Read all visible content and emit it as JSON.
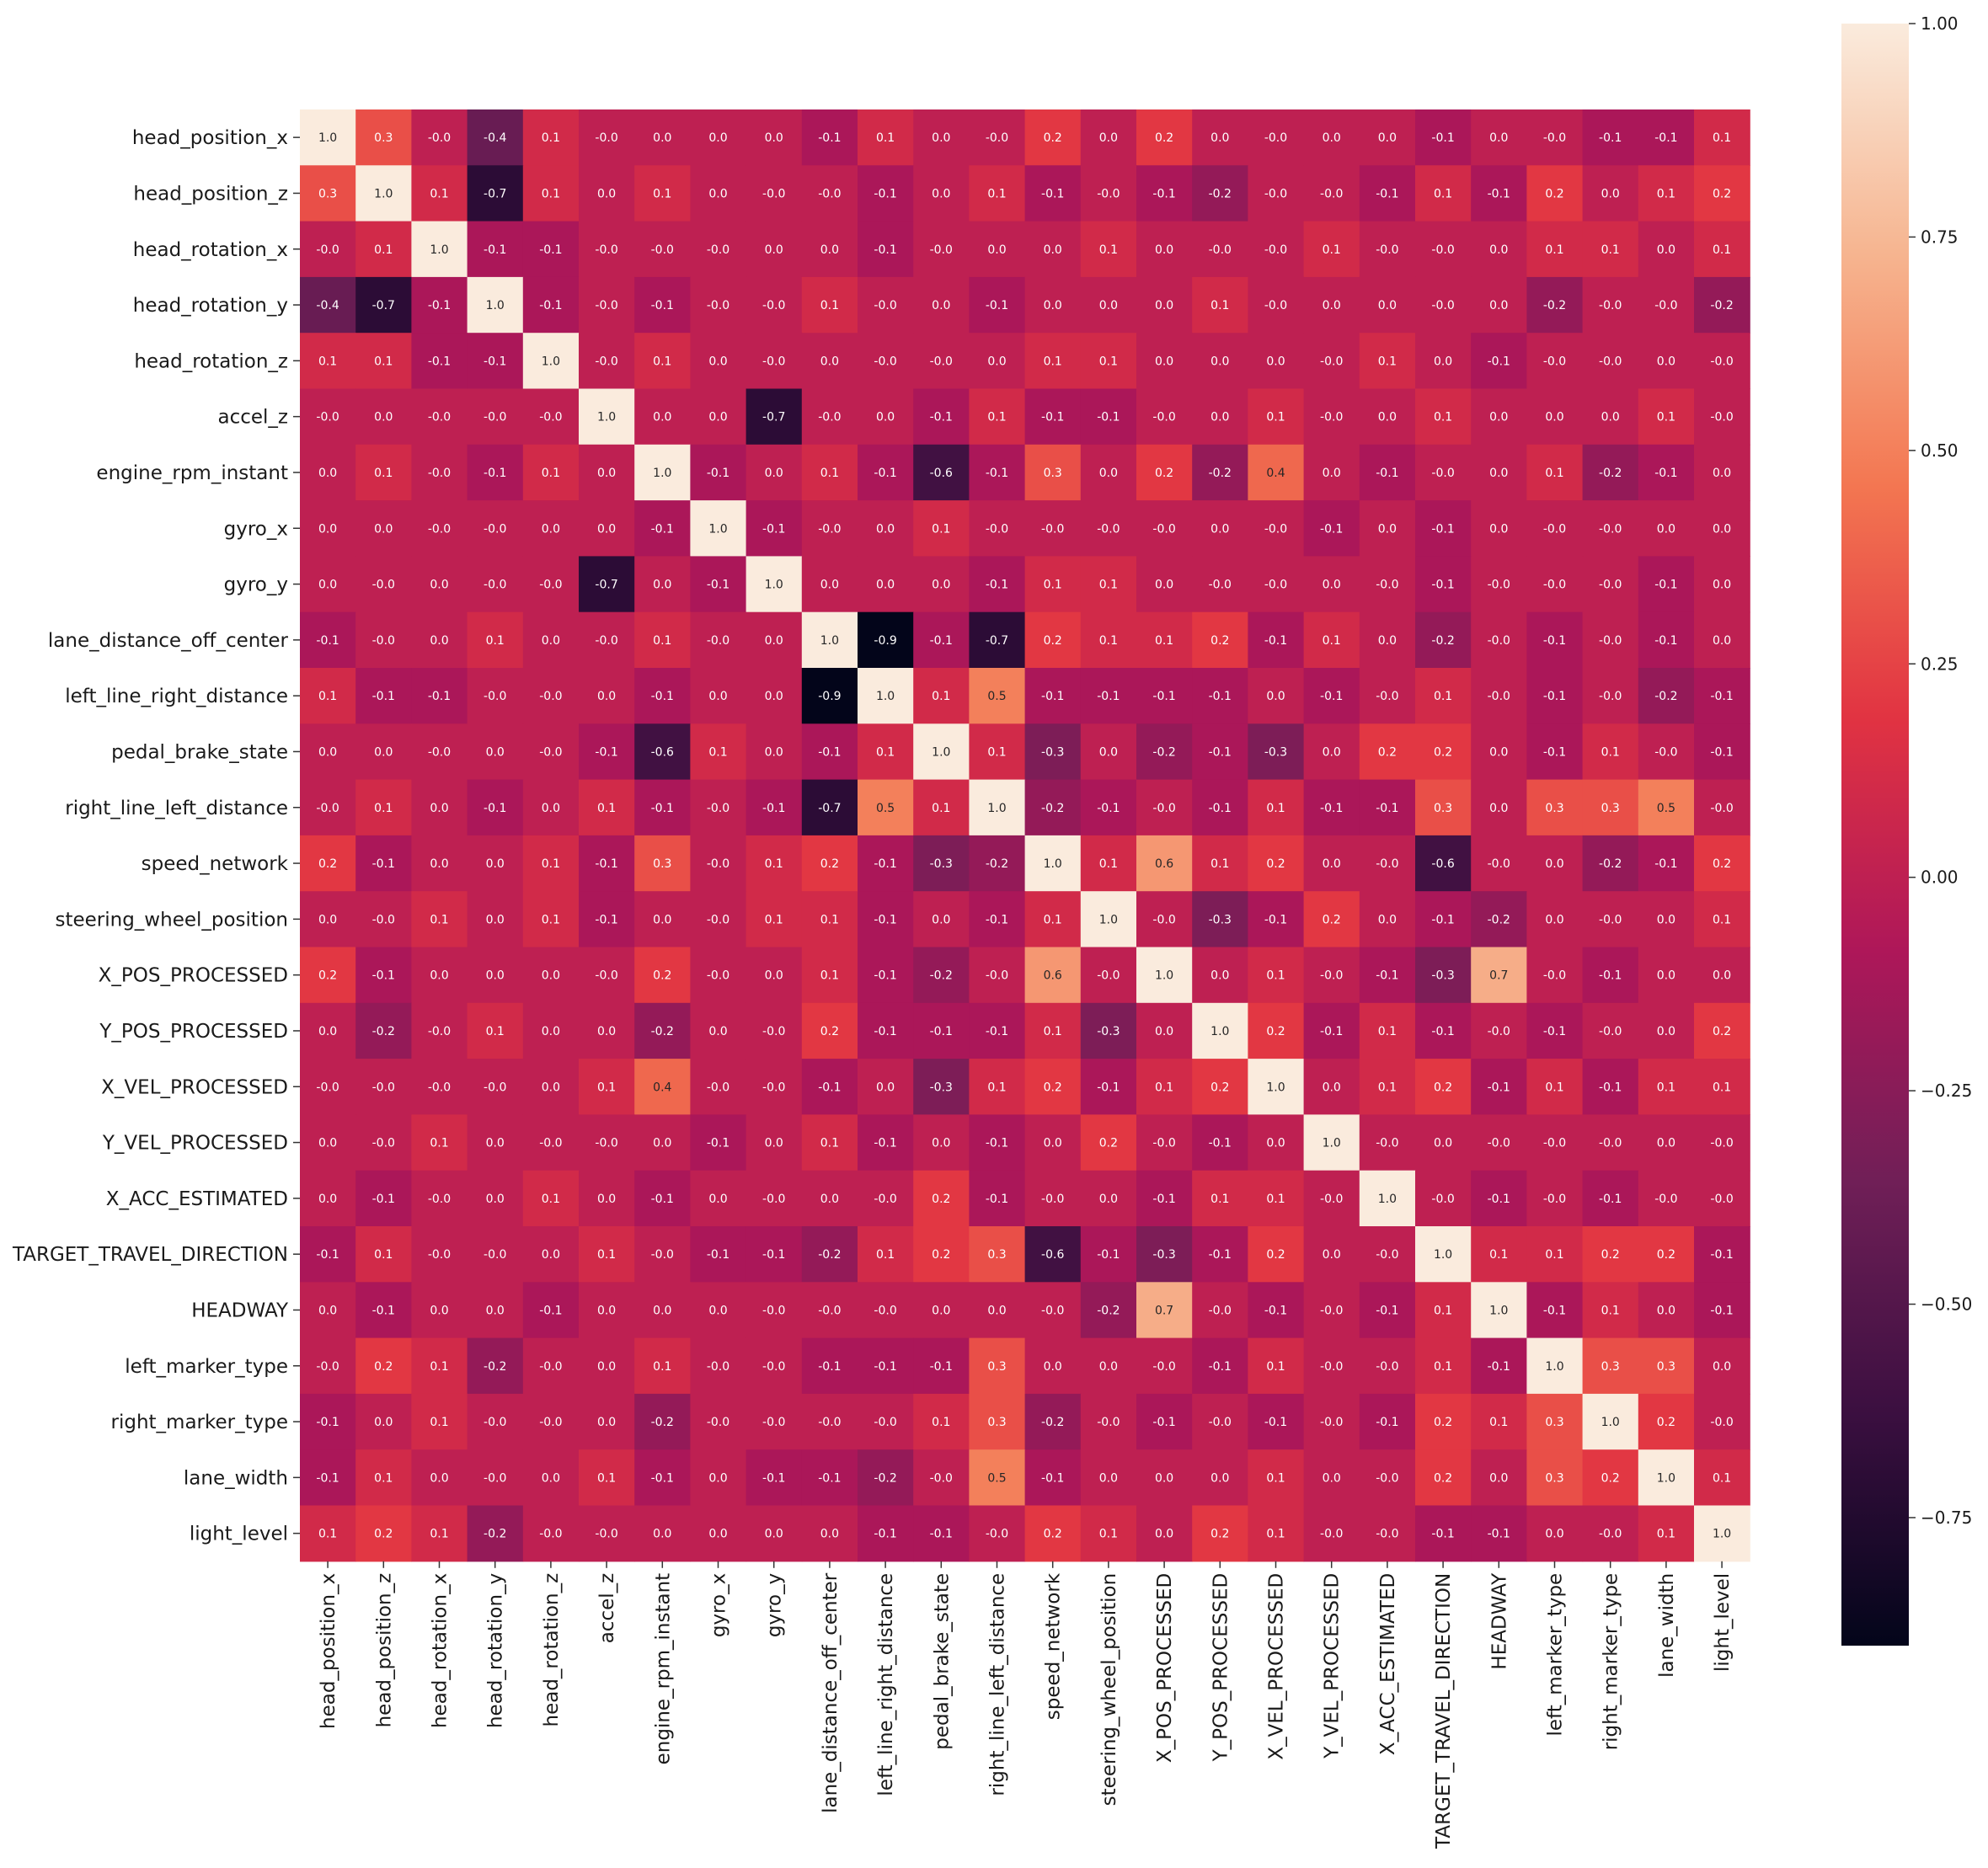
{
  "chart_data": {
    "type": "heatmap",
    "title": "",
    "labels": [
      "head_position_x",
      "head_position_z",
      "head_rotation_x",
      "head_rotation_y",
      "head_rotation_z",
      "accel_z",
      "engine_rpm_instant",
      "gyro_x",
      "gyro_y",
      "lane_distance_off_center",
      "left_line_right_distance",
      "pedal_brake_state",
      "right_line_left_distance",
      "speed_network",
      "steering_wheel_position",
      "X_POS_PROCESSED",
      "Y_POS_PROCESSED",
      "X_VEL_PROCESSED",
      "Y_VEL_PROCESSED",
      "X_ACC_ESTIMATED",
      "TARGET_TRAVEL_DIRECTION",
      "HEADWAY",
      "left_marker_type",
      "right_marker_type",
      "lane_width",
      "light_level"
    ],
    "cells": [
      [
        "1.0",
        "0.3",
        "-0.0",
        "-0.4",
        "0.1",
        "-0.0",
        "0.0",
        "0.0",
        "0.0",
        "-0.1",
        "0.1",
        "0.0",
        "-0.0",
        "0.2",
        "0.0",
        "0.2",
        "0.0",
        "-0.0",
        "0.0",
        "0.0",
        "-0.1",
        "0.0",
        "-0.0",
        "-0.1",
        "-0.1",
        "0.1"
      ],
      [
        "0.3",
        "1.0",
        "0.1",
        "-0.7",
        "0.1",
        "0.0",
        "0.1",
        "0.0",
        "-0.0",
        "-0.0",
        "-0.1",
        "0.0",
        "0.1",
        "-0.1",
        "-0.0",
        "-0.1",
        "-0.2",
        "-0.0",
        "-0.0",
        "-0.1",
        "0.1",
        "-0.1",
        "0.2",
        "0.0",
        "0.1",
        "0.2"
      ],
      [
        "-0.0",
        "0.1",
        "1.0",
        "-0.1",
        "-0.1",
        "-0.0",
        "-0.0",
        "-0.0",
        "0.0",
        "0.0",
        "-0.1",
        "-0.0",
        "0.0",
        "0.0",
        "0.1",
        "0.0",
        "-0.0",
        "-0.0",
        "0.1",
        "-0.0",
        "-0.0",
        "0.0",
        "0.1",
        "0.1",
        "0.0",
        "0.1"
      ],
      [
        "-0.4",
        "-0.7",
        "-0.1",
        "1.0",
        "-0.1",
        "-0.0",
        "-0.1",
        "-0.0",
        "-0.0",
        "0.1",
        "-0.0",
        "0.0",
        "-0.1",
        "0.0",
        "0.0",
        "0.0",
        "0.1",
        "-0.0",
        "0.0",
        "0.0",
        "-0.0",
        "0.0",
        "-0.2",
        "-0.0",
        "-0.0",
        "-0.2"
      ],
      [
        "0.1",
        "0.1",
        "-0.1",
        "-0.1",
        "1.0",
        "-0.0",
        "0.1",
        "0.0",
        "-0.0",
        "0.0",
        "-0.0",
        "-0.0",
        "0.0",
        "0.1",
        "0.1",
        "0.0",
        "0.0",
        "0.0",
        "-0.0",
        "0.1",
        "0.0",
        "-0.1",
        "-0.0",
        "-0.0",
        "0.0",
        "-0.0"
      ],
      [
        "-0.0",
        "0.0",
        "-0.0",
        "-0.0",
        "-0.0",
        "1.0",
        "0.0",
        "0.0",
        "-0.7",
        "-0.0",
        "0.0",
        "-0.1",
        "0.1",
        "-0.1",
        "-0.1",
        "-0.0",
        "0.0",
        "0.1",
        "-0.0",
        "0.0",
        "0.1",
        "0.0",
        "0.0",
        "0.0",
        "0.1",
        "-0.0"
      ],
      [
        "0.0",
        "0.1",
        "-0.0",
        "-0.1",
        "0.1",
        "0.0",
        "1.0",
        "-0.1",
        "0.0",
        "0.1",
        "-0.1",
        "-0.6",
        "-0.1",
        "0.3",
        "0.0",
        "0.2",
        "-0.2",
        "0.4",
        "0.0",
        "-0.1",
        "-0.0",
        "0.0",
        "0.1",
        "-0.2",
        "-0.1",
        "0.0"
      ],
      [
        "0.0",
        "0.0",
        "-0.0",
        "-0.0",
        "0.0",
        "0.0",
        "-0.1",
        "1.0",
        "-0.1",
        "-0.0",
        "0.0",
        "0.1",
        "-0.0",
        "-0.0",
        "-0.0",
        "-0.0",
        "0.0",
        "-0.0",
        "-0.1",
        "0.0",
        "-0.1",
        "0.0",
        "-0.0",
        "-0.0",
        "0.0",
        "0.0"
      ],
      [
        "0.0",
        "-0.0",
        "0.0",
        "-0.0",
        "-0.0",
        "-0.7",
        "0.0",
        "-0.1",
        "1.0",
        "0.0",
        "0.0",
        "0.0",
        "-0.1",
        "0.1",
        "0.1",
        "0.0",
        "-0.0",
        "-0.0",
        "0.0",
        "-0.0",
        "-0.1",
        "-0.0",
        "-0.0",
        "-0.0",
        "-0.1",
        "0.0"
      ],
      [
        "-0.1",
        "-0.0",
        "0.0",
        "0.1",
        "0.0",
        "-0.0",
        "0.1",
        "-0.0",
        "0.0",
        "1.0",
        "-0.9",
        "-0.1",
        "-0.7",
        "0.2",
        "0.1",
        "0.1",
        "0.2",
        "-0.1",
        "0.1",
        "0.0",
        "-0.2",
        "-0.0",
        "-0.1",
        "-0.0",
        "-0.1",
        "0.0"
      ],
      [
        "0.1",
        "-0.1",
        "-0.1",
        "-0.0",
        "-0.0",
        "0.0",
        "-0.1",
        "0.0",
        "0.0",
        "-0.9",
        "1.0",
        "0.1",
        "0.5",
        "-0.1",
        "-0.1",
        "-0.1",
        "-0.1",
        "0.0",
        "-0.1",
        "-0.0",
        "0.1",
        "-0.0",
        "-0.1",
        "-0.0",
        "-0.2",
        "-0.1"
      ],
      [
        "0.0",
        "0.0",
        "-0.0",
        "0.0",
        "-0.0",
        "-0.1",
        "-0.6",
        "0.1",
        "0.0",
        "-0.1",
        "0.1",
        "1.0",
        "0.1",
        "-0.3",
        "0.0",
        "-0.2",
        "-0.1",
        "-0.3",
        "0.0",
        "0.2",
        "0.2",
        "0.0",
        "-0.1",
        "0.1",
        "-0.0",
        "-0.1"
      ],
      [
        "-0.0",
        "0.1",
        "0.0",
        "-0.1",
        "0.0",
        "0.1",
        "-0.1",
        "-0.0",
        "-0.1",
        "-0.7",
        "0.5",
        "0.1",
        "1.0",
        "-0.2",
        "-0.1",
        "-0.0",
        "-0.1",
        "0.1",
        "-0.1",
        "-0.1",
        "0.3",
        "0.0",
        "0.3",
        "0.3",
        "0.5",
        "-0.0"
      ],
      [
        "0.2",
        "-0.1",
        "0.0",
        "0.0",
        "0.1",
        "-0.1",
        "0.3",
        "-0.0",
        "0.1",
        "0.2",
        "-0.1",
        "-0.3",
        "-0.2",
        "1.0",
        "0.1",
        "0.6",
        "0.1",
        "0.2",
        "0.0",
        "-0.0",
        "-0.6",
        "-0.0",
        "0.0",
        "-0.2",
        "-0.1",
        "0.2"
      ],
      [
        "0.0",
        "-0.0",
        "0.1",
        "0.0",
        "0.1",
        "-0.1",
        "0.0",
        "-0.0",
        "0.1",
        "0.1",
        "-0.1",
        "0.0",
        "-0.1",
        "0.1",
        "1.0",
        "-0.0",
        "-0.3",
        "-0.1",
        "0.2",
        "0.0",
        "-0.1",
        "-0.2",
        "0.0",
        "-0.0",
        "0.0",
        "0.1"
      ],
      [
        "0.2",
        "-0.1",
        "0.0",
        "0.0",
        "0.0",
        "-0.0",
        "0.2",
        "-0.0",
        "0.0",
        "0.1",
        "-0.1",
        "-0.2",
        "-0.0",
        "0.6",
        "-0.0",
        "1.0",
        "0.0",
        "0.1",
        "-0.0",
        "-0.1",
        "-0.3",
        "0.7",
        "-0.0",
        "-0.1",
        "0.0",
        "0.0"
      ],
      [
        "0.0",
        "-0.2",
        "-0.0",
        "0.1",
        "0.0",
        "0.0",
        "-0.2",
        "0.0",
        "-0.0",
        "0.2",
        "-0.1",
        "-0.1",
        "-0.1",
        "0.1",
        "-0.3",
        "0.0",
        "1.0",
        "0.2",
        "-0.1",
        "0.1",
        "-0.1",
        "-0.0",
        "-0.1",
        "-0.0",
        "0.0",
        "0.2"
      ],
      [
        "-0.0",
        "-0.0",
        "-0.0",
        "-0.0",
        "0.0",
        "0.1",
        "0.4",
        "-0.0",
        "-0.0",
        "-0.1",
        "0.0",
        "-0.3",
        "0.1",
        "0.2",
        "-0.1",
        "0.1",
        "0.2",
        "1.0",
        "0.0",
        "0.1",
        "0.2",
        "-0.1",
        "0.1",
        "-0.1",
        "0.1",
        "0.1"
      ],
      [
        "0.0",
        "-0.0",
        "0.1",
        "0.0",
        "-0.0",
        "-0.0",
        "0.0",
        "-0.1",
        "0.0",
        "0.1",
        "-0.1",
        "0.0",
        "-0.1",
        "0.0",
        "0.2",
        "-0.0",
        "-0.1",
        "0.0",
        "1.0",
        "-0.0",
        "0.0",
        "-0.0",
        "-0.0",
        "-0.0",
        "0.0",
        "-0.0"
      ],
      [
        "0.0",
        "-0.1",
        "-0.0",
        "0.0",
        "0.1",
        "0.0",
        "-0.1",
        "0.0",
        "-0.0",
        "0.0",
        "-0.0",
        "0.2",
        "-0.1",
        "-0.0",
        "0.0",
        "-0.1",
        "0.1",
        "0.1",
        "-0.0",
        "1.0",
        "-0.0",
        "-0.1",
        "-0.0",
        "-0.1",
        "-0.0",
        "-0.0"
      ],
      [
        "-0.1",
        "0.1",
        "-0.0",
        "-0.0",
        "0.0",
        "0.1",
        "-0.0",
        "-0.1",
        "-0.1",
        "-0.2",
        "0.1",
        "0.2",
        "0.3",
        "-0.6",
        "-0.1",
        "-0.3",
        "-0.1",
        "0.2",
        "0.0",
        "-0.0",
        "1.0",
        "0.1",
        "0.1",
        "0.2",
        "0.2",
        "-0.1"
      ],
      [
        "0.0",
        "-0.1",
        "0.0",
        "0.0",
        "-0.1",
        "0.0",
        "0.0",
        "0.0",
        "-0.0",
        "-0.0",
        "-0.0",
        "0.0",
        "0.0",
        "-0.0",
        "-0.2",
        "0.7",
        "-0.0",
        "-0.1",
        "-0.0",
        "-0.1",
        "0.1",
        "1.0",
        "-0.1",
        "0.1",
        "0.0",
        "-0.1"
      ],
      [
        "-0.0",
        "0.2",
        "0.1",
        "-0.2",
        "-0.0",
        "0.0",
        "0.1",
        "-0.0",
        "-0.0",
        "-0.1",
        "-0.1",
        "-0.1",
        "0.3",
        "0.0",
        "0.0",
        "-0.0",
        "-0.1",
        "0.1",
        "-0.0",
        "-0.0",
        "0.1",
        "-0.1",
        "1.0",
        "0.3",
        "0.3",
        "0.0"
      ],
      [
        "-0.1",
        "0.0",
        "0.1",
        "-0.0",
        "-0.0",
        "0.0",
        "-0.2",
        "-0.0",
        "-0.0",
        "-0.0",
        "-0.0",
        "0.1",
        "0.3",
        "-0.2",
        "-0.0",
        "-0.1",
        "-0.0",
        "-0.1",
        "-0.0",
        "-0.1",
        "0.2",
        "0.1",
        "0.3",
        "1.0",
        "0.2",
        "-0.0"
      ],
      [
        "-0.1",
        "0.1",
        "0.0",
        "-0.0",
        "0.0",
        "0.1",
        "-0.1",
        "0.0",
        "-0.1",
        "-0.1",
        "-0.2",
        "-0.0",
        "0.5",
        "-0.1",
        "0.0",
        "0.0",
        "0.0",
        "0.1",
        "0.0",
        "-0.0",
        "0.2",
        "0.0",
        "0.3",
        "0.2",
        "1.0",
        "0.1"
      ],
      [
        "0.1",
        "0.2",
        "0.1",
        "-0.2",
        "-0.0",
        "-0.0",
        "0.0",
        "0.0",
        "0.0",
        "0.0",
        "-0.1",
        "-0.1",
        "-0.0",
        "0.2",
        "0.1",
        "0.0",
        "0.2",
        "0.1",
        "-0.0",
        "-0.0",
        "-0.1",
        "-0.1",
        "0.0",
        "-0.0",
        "0.1",
        "1.0"
      ]
    ],
    "colorbar": {
      "vmin": -0.9,
      "vmax": 1.0,
      "ticks": [
        "1.00",
        "0.75",
        "0.50",
        "0.25",
        "0.00",
        "−0.25",
        "−0.50",
        "−0.75"
      ]
    },
    "colormap": [
      "#03051a",
      "#3b0f40",
      "#701f57",
      "#ae1759",
      "#e13342",
      "#f37651",
      "#f6b48f",
      "#faebdd"
    ]
  }
}
